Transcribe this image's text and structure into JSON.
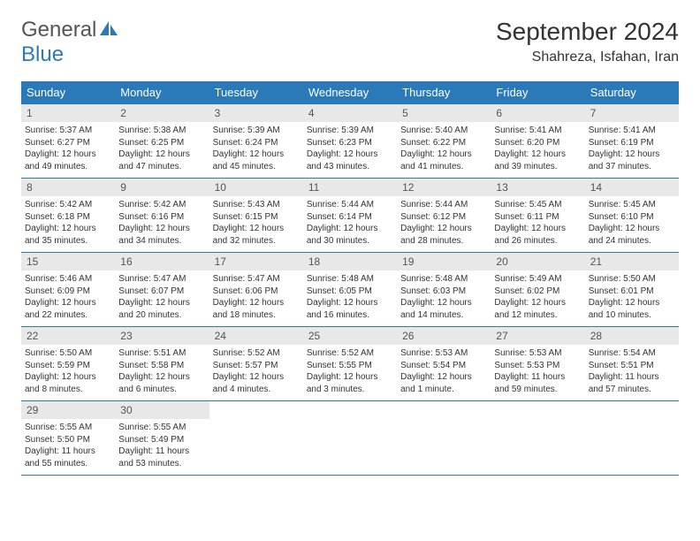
{
  "logo": {
    "textGray": "General",
    "textBlue": "Blue"
  },
  "title": "September 2024",
  "location": "Shahreza, Isfahan, Iran",
  "colors": {
    "headerBg": "#2a7ab9",
    "headerText": "#ffffff",
    "dayNumBg": "#e8e8e8",
    "dayNumText": "#555555",
    "bodyText": "#333333",
    "borderColor": "#2a7ab9",
    "background": "#ffffff"
  },
  "columns": [
    "Sunday",
    "Monday",
    "Tuesday",
    "Wednesday",
    "Thursday",
    "Friday",
    "Saturday"
  ],
  "days": [
    {
      "n": 1,
      "sr": "5:37 AM",
      "ss": "6:27 PM",
      "dl": "12 hours and 49 minutes."
    },
    {
      "n": 2,
      "sr": "5:38 AM",
      "ss": "6:25 PM",
      "dl": "12 hours and 47 minutes."
    },
    {
      "n": 3,
      "sr": "5:39 AM",
      "ss": "6:24 PM",
      "dl": "12 hours and 45 minutes."
    },
    {
      "n": 4,
      "sr": "5:39 AM",
      "ss": "6:23 PM",
      "dl": "12 hours and 43 minutes."
    },
    {
      "n": 5,
      "sr": "5:40 AM",
      "ss": "6:22 PM",
      "dl": "12 hours and 41 minutes."
    },
    {
      "n": 6,
      "sr": "5:41 AM",
      "ss": "6:20 PM",
      "dl": "12 hours and 39 minutes."
    },
    {
      "n": 7,
      "sr": "5:41 AM",
      "ss": "6:19 PM",
      "dl": "12 hours and 37 minutes."
    },
    {
      "n": 8,
      "sr": "5:42 AM",
      "ss": "6:18 PM",
      "dl": "12 hours and 35 minutes."
    },
    {
      "n": 9,
      "sr": "5:42 AM",
      "ss": "6:16 PM",
      "dl": "12 hours and 34 minutes."
    },
    {
      "n": 10,
      "sr": "5:43 AM",
      "ss": "6:15 PM",
      "dl": "12 hours and 32 minutes."
    },
    {
      "n": 11,
      "sr": "5:44 AM",
      "ss": "6:14 PM",
      "dl": "12 hours and 30 minutes."
    },
    {
      "n": 12,
      "sr": "5:44 AM",
      "ss": "6:12 PM",
      "dl": "12 hours and 28 minutes."
    },
    {
      "n": 13,
      "sr": "5:45 AM",
      "ss": "6:11 PM",
      "dl": "12 hours and 26 minutes."
    },
    {
      "n": 14,
      "sr": "5:45 AM",
      "ss": "6:10 PM",
      "dl": "12 hours and 24 minutes."
    },
    {
      "n": 15,
      "sr": "5:46 AM",
      "ss": "6:09 PM",
      "dl": "12 hours and 22 minutes."
    },
    {
      "n": 16,
      "sr": "5:47 AM",
      "ss": "6:07 PM",
      "dl": "12 hours and 20 minutes."
    },
    {
      "n": 17,
      "sr": "5:47 AM",
      "ss": "6:06 PM",
      "dl": "12 hours and 18 minutes."
    },
    {
      "n": 18,
      "sr": "5:48 AM",
      "ss": "6:05 PM",
      "dl": "12 hours and 16 minutes."
    },
    {
      "n": 19,
      "sr": "5:48 AM",
      "ss": "6:03 PM",
      "dl": "12 hours and 14 minutes."
    },
    {
      "n": 20,
      "sr": "5:49 AM",
      "ss": "6:02 PM",
      "dl": "12 hours and 12 minutes."
    },
    {
      "n": 21,
      "sr": "5:50 AM",
      "ss": "6:01 PM",
      "dl": "12 hours and 10 minutes."
    },
    {
      "n": 22,
      "sr": "5:50 AM",
      "ss": "5:59 PM",
      "dl": "12 hours and 8 minutes."
    },
    {
      "n": 23,
      "sr": "5:51 AM",
      "ss": "5:58 PM",
      "dl": "12 hours and 6 minutes."
    },
    {
      "n": 24,
      "sr": "5:52 AM",
      "ss": "5:57 PM",
      "dl": "12 hours and 4 minutes."
    },
    {
      "n": 25,
      "sr": "5:52 AM",
      "ss": "5:55 PM",
      "dl": "12 hours and 3 minutes."
    },
    {
      "n": 26,
      "sr": "5:53 AM",
      "ss": "5:54 PM",
      "dl": "12 hours and 1 minute."
    },
    {
      "n": 27,
      "sr": "5:53 AM",
      "ss": "5:53 PM",
      "dl": "11 hours and 59 minutes."
    },
    {
      "n": 28,
      "sr": "5:54 AM",
      "ss": "5:51 PM",
      "dl": "11 hours and 57 minutes."
    },
    {
      "n": 29,
      "sr": "5:55 AM",
      "ss": "5:50 PM",
      "dl": "11 hours and 55 minutes."
    },
    {
      "n": 30,
      "sr": "5:55 AM",
      "ss": "5:49 PM",
      "dl": "11 hours and 53 minutes."
    }
  ],
  "labels": {
    "sunrise": "Sunrise:",
    "sunset": "Sunset:",
    "daylight": "Daylight:"
  },
  "typography": {
    "title_fontsize": 28,
    "location_fontsize": 16,
    "th_fontsize": 13,
    "daynum_fontsize": 12,
    "body_fontsize": 10
  }
}
